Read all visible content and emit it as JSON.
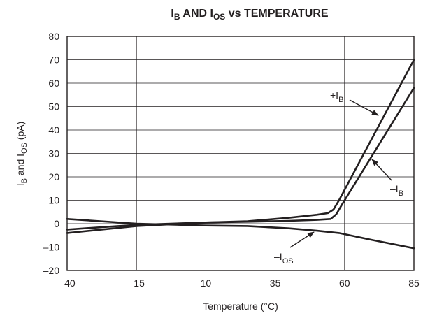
{
  "chart_data": {
    "type": "line",
    "title": {
      "main": "I",
      "sub1": "B",
      "mid": " AND I",
      "sub2": "OS",
      "rest": " vs TEMPERATURE"
    },
    "xlabel": "Temperature (°C)",
    "ylabel": {
      "p1": "I",
      "s1": "B",
      "p2": " and I",
      "s2": "OS",
      "p3": " (pA)"
    },
    "x_ticks": [
      -40,
      -15,
      10,
      35,
      60,
      85
    ],
    "x_tick_labels": [
      "–40",
      "–15",
      "10",
      "35",
      "60",
      "85"
    ],
    "y_ticks": [
      -20,
      -10,
      0,
      10,
      20,
      30,
      40,
      50,
      60,
      70,
      80
    ],
    "y_tick_labels": [
      "–20",
      "–10",
      "0",
      "10",
      "20",
      "30",
      "40",
      "50",
      "60",
      "70",
      "80"
    ],
    "xlim": [
      -40,
      85
    ],
    "ylim": [
      -20,
      80
    ],
    "grid": true,
    "series": [
      {
        "name": "+IB",
        "x": [
          -40,
          -15,
          10,
          25,
          40,
          50,
          54,
          56,
          58,
          85
        ],
        "y": [
          -4,
          -1,
          0.5,
          1,
          2.5,
          3.8,
          4.5,
          6,
          10,
          70
        ]
      },
      {
        "name": "–IB",
        "x": [
          -40,
          -15,
          10,
          25,
          40,
          50,
          55,
          57,
          59,
          85
        ],
        "y": [
          -2.5,
          -0.5,
          0.5,
          0.8,
          1.2,
          1.6,
          2.0,
          4,
          8,
          58
        ]
      },
      {
        "name": "–IOS",
        "x": [
          -40,
          -15,
          10,
          25,
          40,
          50,
          58,
          70,
          85
        ],
        "y": [
          2,
          0,
          -0.8,
          -1,
          -2,
          -3,
          -4,
          -7,
          -10.5
        ]
      }
    ],
    "annotations": [
      {
        "label": "+I",
        "sub": "B"
      },
      {
        "label": "–I",
        "sub": "B"
      },
      {
        "label": "–I",
        "sub": "OS"
      }
    ]
  }
}
